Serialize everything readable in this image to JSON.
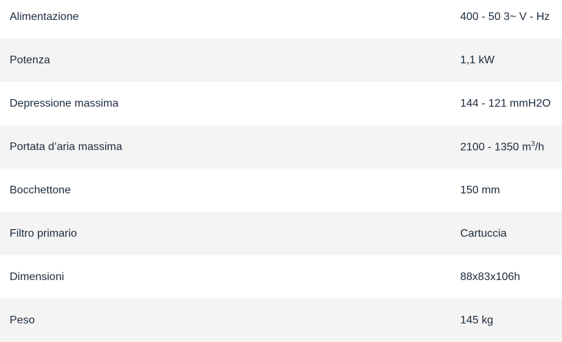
{
  "specs": [
    {
      "label": "Alimentazione",
      "value": "400 - 50 3~ V - Hz"
    },
    {
      "label": "Potenza",
      "value": "1,1 kW"
    },
    {
      "label": "Depressione massima",
      "value": "144 - 121 mmH2O"
    },
    {
      "label": "Portata d’aria massima",
      "value": "2100 - 1350 m",
      "value_sup": "3",
      "value_suffix": "/h"
    },
    {
      "label": "Bocchettone",
      "value": "150 mm"
    },
    {
      "label": "Filtro primario",
      "value": "Cartuccia"
    },
    {
      "label": "Dimensioni",
      "value": "88x83x106h"
    },
    {
      "label": "Peso",
      "value": "145 kg"
    }
  ]
}
